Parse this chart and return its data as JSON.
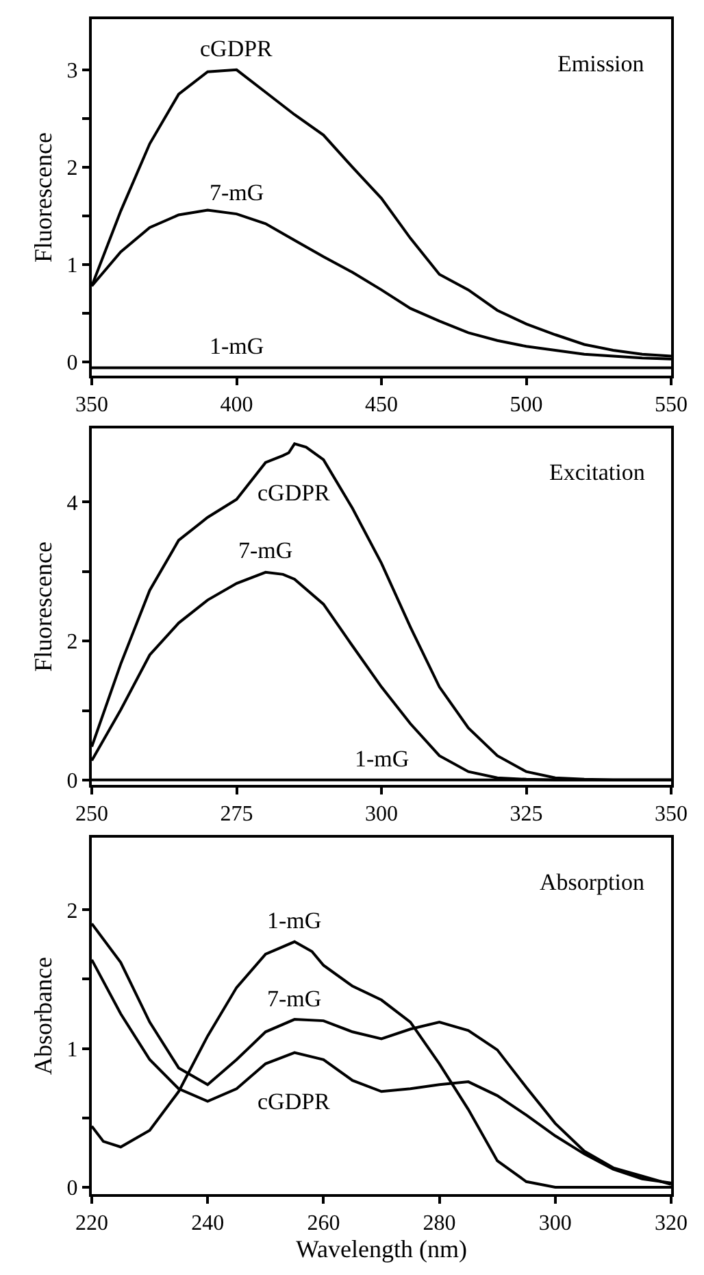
{
  "chart_data": [
    {
      "type": "line",
      "ylabel": "Fluorescence",
      "xlim": [
        350,
        550
      ],
      "xticks": [
        350,
        400,
        450,
        500,
        550
      ],
      "ylim": [
        -0.14,
        3.52
      ],
      "yticks": [
        0,
        {
          "value": 0.5,
          "label": null
        },
        1,
        {
          "value": 1.5,
          "label": null
        },
        2,
        {
          "value": 2.5,
          "label": null
        },
        3
      ],
      "legend": false,
      "x": [
        350,
        360,
        370,
        380,
        390,
        400,
        410,
        420,
        430,
        440,
        450,
        460,
        470,
        480,
        490,
        500,
        510,
        520,
        530,
        540,
        550
      ],
      "series": [
        {
          "name": "cGDPR",
          "color": "#000000",
          "values": [
            0.78,
            1.55,
            2.24,
            2.75,
            2.98,
            3.0,
            2.77,
            2.54,
            2.33,
            2.0,
            1.68,
            1.27,
            0.9,
            0.74,
            0.53,
            0.39,
            0.28,
            0.18,
            0.12,
            0.08,
            0.06
          ]
        },
        {
          "name": "7-mG",
          "color": "#000000",
          "values": [
            0.78,
            1.13,
            1.38,
            1.51,
            1.56,
            1.52,
            1.42,
            1.25,
            1.08,
            0.92,
            0.74,
            0.55,
            0.42,
            0.3,
            0.22,
            0.16,
            0.12,
            0.08,
            0.06,
            0.04,
            0.03
          ]
        },
        {
          "name": "1-mG",
          "color": "#000000",
          "values": [
            -0.06,
            -0.06,
            -0.06,
            -0.06,
            -0.06,
            -0.06,
            -0.06,
            -0.06,
            -0.06,
            -0.06,
            -0.06,
            -0.06,
            -0.06,
            -0.06,
            -0.06,
            -0.06,
            -0.06,
            -0.06,
            -0.06,
            -0.06,
            -0.06
          ]
        }
      ],
      "annotations": [
        "Emission"
      ]
    },
    {
      "type": "line",
      "ylabel": "Fluorescence",
      "xlim": [
        250,
        350
      ],
      "xticks": [
        250,
        275,
        300,
        325,
        350
      ],
      "ylim": [
        -0.07,
        5.06
      ],
      "yticks": [
        0,
        {
          "value": 1,
          "label": null
        },
        2,
        {
          "value": 3,
          "label": null
        },
        4
      ],
      "legend": false,
      "series": [
        {
          "name": "cGDPR",
          "color": "#000000",
          "x": [
            250,
            255,
            260,
            265,
            270,
            275,
            280,
            283,
            284,
            285,
            287,
            290,
            295,
            300,
            305,
            310,
            315,
            320,
            325,
            330,
            335,
            340,
            350
          ],
          "values": [
            0.48,
            1.67,
            2.73,
            3.45,
            3.78,
            4.04,
            4.57,
            4.67,
            4.71,
            4.84,
            4.79,
            4.61,
            3.91,
            3.12,
            2.2,
            1.34,
            0.75,
            0.35,
            0.12,
            0.03,
            0.01,
            0.0,
            0.0
          ]
        },
        {
          "name": "7-mG",
          "color": "#000000",
          "x": [
            250,
            255,
            260,
            265,
            270,
            275,
            280,
            283,
            285,
            290,
            295,
            300,
            305,
            310,
            315,
            320,
            325,
            330,
            350
          ],
          "values": [
            0.28,
            1.01,
            1.8,
            2.26,
            2.59,
            2.83,
            2.99,
            2.96,
            2.89,
            2.53,
            1.93,
            1.34,
            0.81,
            0.35,
            0.12,
            0.03,
            0.01,
            0.0,
            0.0
          ]
        },
        {
          "name": "1-mG",
          "color": "#000000",
          "x": [
            250,
            350
          ],
          "values": [
            0.0,
            0.0
          ]
        }
      ],
      "annotations": [
        "Excitation"
      ]
    },
    {
      "type": "line",
      "xlabel": "Wavelength (nm)",
      "ylabel": "Absorbance",
      "xlim": [
        220,
        320
      ],
      "xticks": [
        220,
        240,
        260,
        280,
        300,
        320
      ],
      "ylim": [
        -0.05,
        2.52
      ],
      "yticks": [
        0,
        {
          "value": 0.5,
          "label": null
        },
        1,
        {
          "value": 1.5,
          "label": null
        },
        2
      ],
      "legend": false,
      "series": [
        {
          "name": "1-mG",
          "color": "#000000",
          "x": [
            220,
            222,
            225,
            230,
            235,
            240,
            245,
            250,
            255,
            258,
            260,
            265,
            270,
            275,
            280,
            285,
            290,
            295,
            300,
            320
          ],
          "values": [
            0.44,
            0.33,
            0.29,
            0.41,
            0.69,
            1.09,
            1.44,
            1.68,
            1.77,
            1.7,
            1.6,
            1.45,
            1.35,
            1.19,
            0.89,
            0.56,
            0.19,
            0.04,
            0.0,
            0.0
          ]
        },
        {
          "name": "7-mG",
          "color": "#000000",
          "x": [
            220,
            225,
            230,
            235,
            240,
            245,
            250,
            255,
            260,
            265,
            270,
            275,
            280,
            285,
            290,
            295,
            300,
            305,
            310,
            315,
            320
          ],
          "values": [
            1.9,
            1.62,
            1.19,
            0.86,
            0.74,
            0.92,
            1.12,
            1.21,
            1.2,
            1.12,
            1.07,
            1.14,
            1.19,
            1.13,
            0.99,
            0.72,
            0.46,
            0.26,
            0.14,
            0.08,
            0.02
          ]
        },
        {
          "name": "cGDPR",
          "color": "#000000",
          "x": [
            220,
            225,
            230,
            235,
            240,
            245,
            250,
            255,
            260,
            265,
            270,
            275,
            280,
            285,
            290,
            295,
            300,
            305,
            310,
            315,
            320
          ],
          "values": [
            1.64,
            1.25,
            0.92,
            0.71,
            0.62,
            0.71,
            0.89,
            0.97,
            0.92,
            0.77,
            0.69,
            0.71,
            0.74,
            0.76,
            0.66,
            0.52,
            0.37,
            0.24,
            0.13,
            0.06,
            0.03
          ]
        }
      ],
      "annotations": [
        "Absorption"
      ]
    }
  ]
}
